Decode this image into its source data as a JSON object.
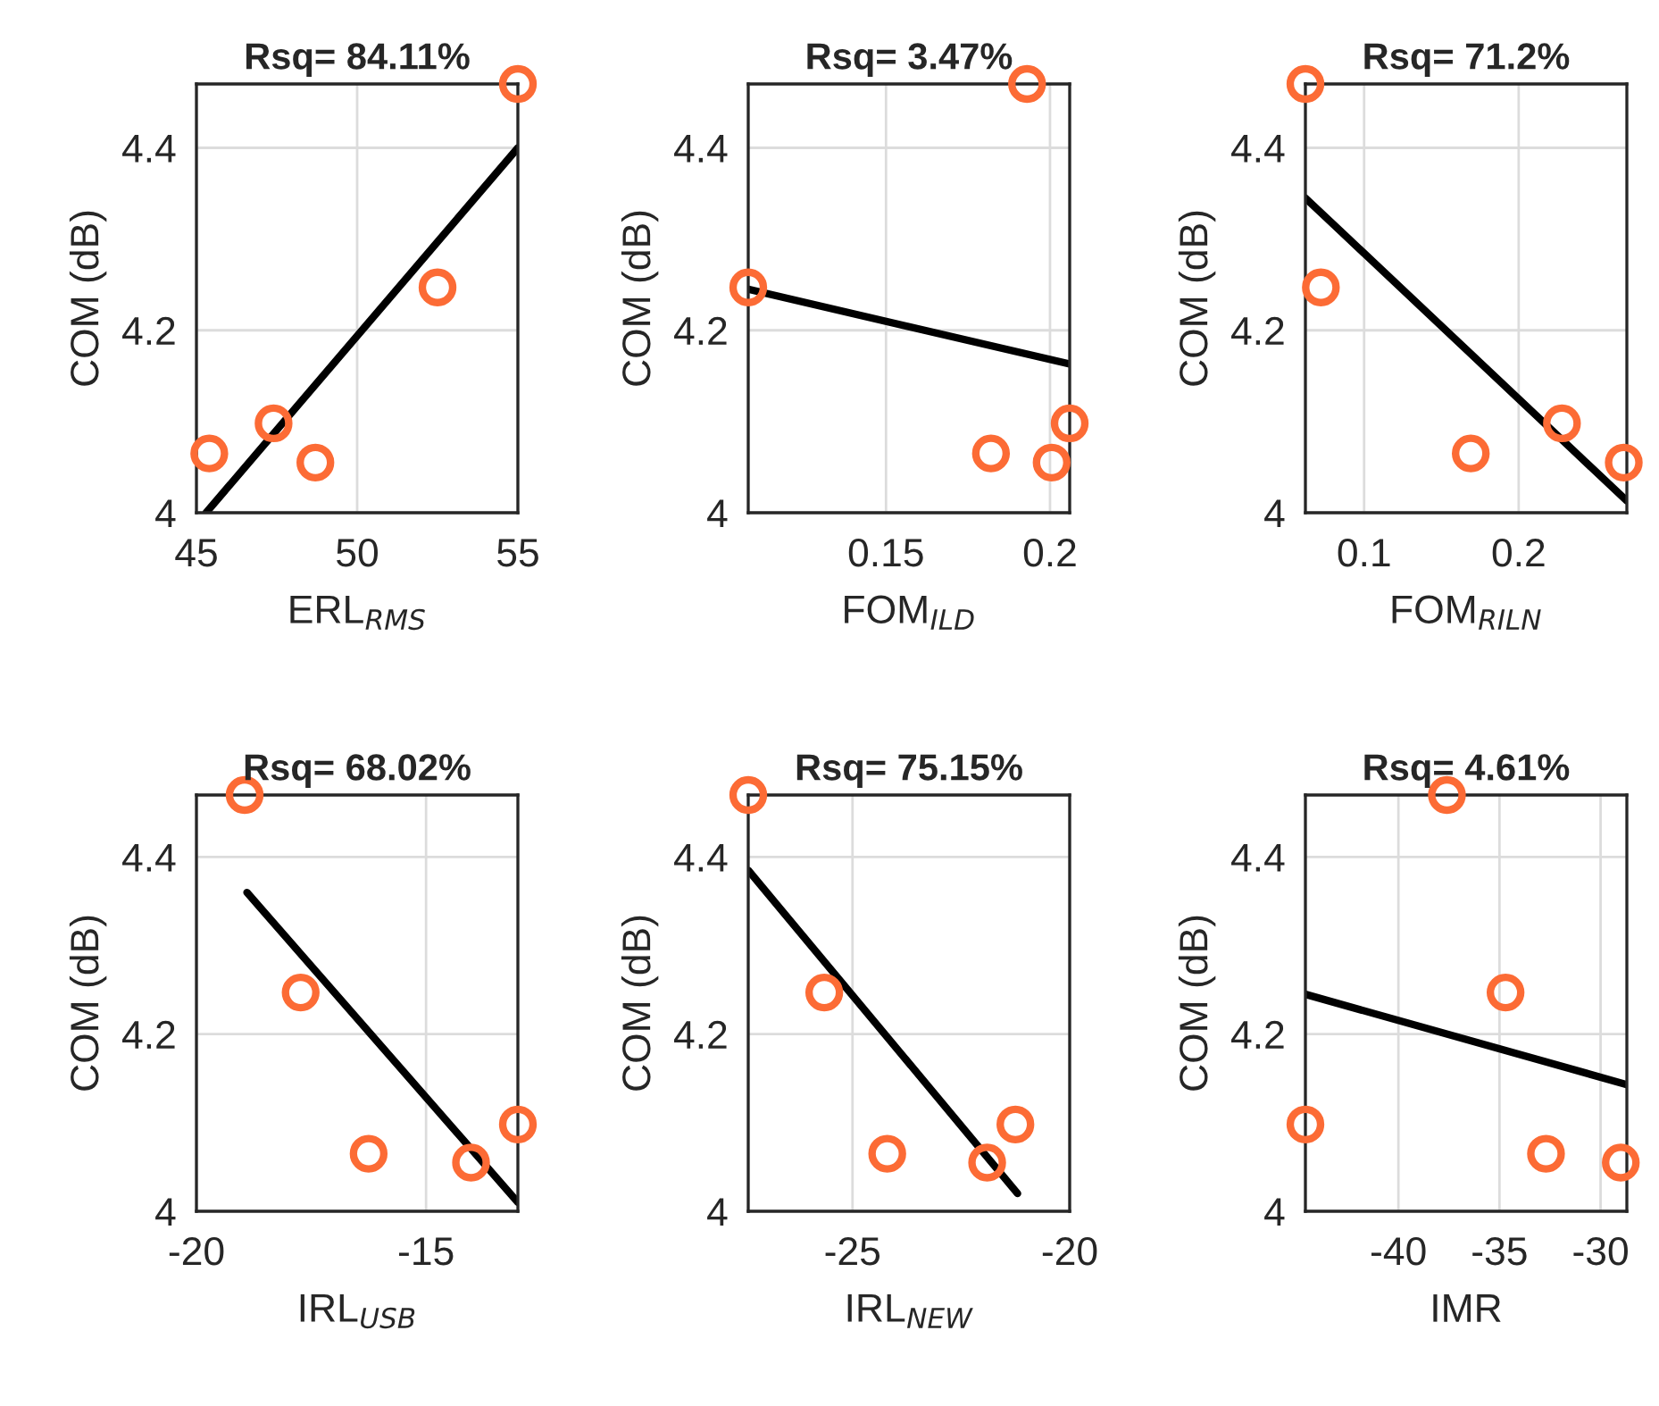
{
  "chart_data": [
    {
      "type": "scatter",
      "title": "Rsq= 84.11%",
      "xlabel": "ERL$_{RMS}$",
      "ylabel": "COM (dB)",
      "xlim": [
        45,
        55
      ],
      "xticks": [
        45,
        50,
        55
      ],
      "ylim": [
        4,
        4.47
      ],
      "yticks": [
        4,
        4.2,
        4.4
      ],
      "grid": true,
      "marker": "circle",
      "series": [
        {
          "color": "#fc6b35",
          "x": [
            45.4,
            47.4,
            48.7,
            52.5,
            55
          ],
          "values": [
            4.065,
            4.098,
            4.055,
            4.247,
            4.47
          ]
        },
        {
          "type": "line",
          "color": "#000000",
          "marker": "none",
          "x": [
            45.3,
            55
          ],
          "values": [
            4.0,
            4.4
          ]
        }
      ]
    },
    {
      "type": "scatter",
      "title": "Rsq= 3.47%",
      "xlabel": "FOM$_{ILD}$",
      "ylabel": "COM (dB)",
      "xlim": [
        0.108,
        0.206
      ],
      "xticks": [
        0.15,
        0.2
      ],
      "ylim": [
        4,
        4.47
      ],
      "yticks": [
        4,
        4.2,
        4.4
      ],
      "grid": true,
      "marker": "circle",
      "series": [
        {
          "color": "#fc6b35",
          "x": [
            0.108,
            0.182,
            0.193,
            0.2005,
            0.206
          ],
          "values": [
            4.247,
            4.065,
            4.47,
            4.055,
            4.098
          ]
        },
        {
          "type": "line",
          "color": "#000000",
          "marker": "none",
          "x": [
            0.108,
            0.206
          ],
          "values": [
            4.245,
            4.163
          ]
        }
      ]
    },
    {
      "type": "scatter",
      "title": "Rsq= 71.2%",
      "xlabel": "FOM$_{RILN}$",
      "ylabel": "COM (dB)",
      "xlim": [
        0.062,
        0.27
      ],
      "xticks": [
        0.1,
        0.2
      ],
      "ylim": [
        4,
        4.47
      ],
      "yticks": [
        4,
        4.2,
        4.4
      ],
      "grid": true,
      "marker": "circle",
      "series": [
        {
          "color": "#fc6b35",
          "x": [
            0.062,
            0.072,
            0.169,
            0.228,
            0.268
          ],
          "values": [
            4.47,
            4.247,
            4.065,
            4.098,
            4.055
          ]
        },
        {
          "type": "line",
          "color": "#000000",
          "marker": "none",
          "x": [
            0.062,
            0.27
          ],
          "values": [
            4.345,
            4.013
          ]
        }
      ]
    },
    {
      "type": "scatter",
      "title": "Rsq= 68.02%",
      "xlabel": "IRL$_{USB}$",
      "ylabel": "COM (dB)",
      "xlim": [
        -20,
        -13
      ],
      "xticks": [
        -20,
        -15
      ],
      "ylim": [
        4,
        4.47
      ],
      "yticks": [
        4,
        4.2,
        4.4
      ],
      "grid": true,
      "marker": "circle",
      "series": [
        {
          "color": "#fc6b35",
          "x": [
            -18.95,
            -17.73,
            -16.25,
            -14.02,
            -13.0
          ],
          "values": [
            4.47,
            4.247,
            4.065,
            4.055,
            4.098
          ]
        },
        {
          "type": "line",
          "color": "#000000",
          "marker": "none",
          "x": [
            -18.9,
            -13.0
          ],
          "values": [
            4.36,
            4.01
          ]
        }
      ]
    },
    {
      "type": "scatter",
      "title": "Rsq= 75.15%",
      "xlabel": "IRL$_{NEW}$",
      "ylabel": "COM (dB)",
      "xlim": [
        -27.4,
        -20
      ],
      "xticks": [
        -25,
        -20
      ],
      "ylim": [
        4,
        4.47
      ],
      "yticks": [
        4,
        4.2,
        4.4
      ],
      "grid": true,
      "marker": "circle",
      "series": [
        {
          "color": "#fc6b35",
          "x": [
            -27.4,
            -25.65,
            -24.2,
            -21.9,
            -21.25
          ],
          "values": [
            4.47,
            4.247,
            4.065,
            4.055,
            4.098
          ]
        },
        {
          "type": "line",
          "color": "#000000",
          "marker": "none",
          "x": [
            -27.4,
            -21.2
          ],
          "values": [
            4.385,
            4.02
          ]
        }
      ]
    },
    {
      "type": "scatter",
      "title": "Rsq= 4.61%",
      "xlabel": "IMR",
      "ylabel": "COM (dB)",
      "xlim": [
        -44.6,
        -28.7
      ],
      "xticks": [
        -40,
        -35,
        -30
      ],
      "ylim": [
        4,
        4.47
      ],
      "yticks": [
        4,
        4.2,
        4.4
      ],
      "grid": true,
      "marker": "circle",
      "series": [
        {
          "color": "#fc6b35",
          "x": [
            -44.6,
            -37.6,
            -34.7,
            -32.7,
            -29.0
          ],
          "values": [
            4.098,
            4.47,
            4.247,
            4.065,
            4.055
          ]
        },
        {
          "type": "line",
          "color": "#000000",
          "marker": "none",
          "x": [
            -44.6,
            -28.7
          ],
          "values": [
            4.245,
            4.143
          ]
        }
      ]
    }
  ]
}
